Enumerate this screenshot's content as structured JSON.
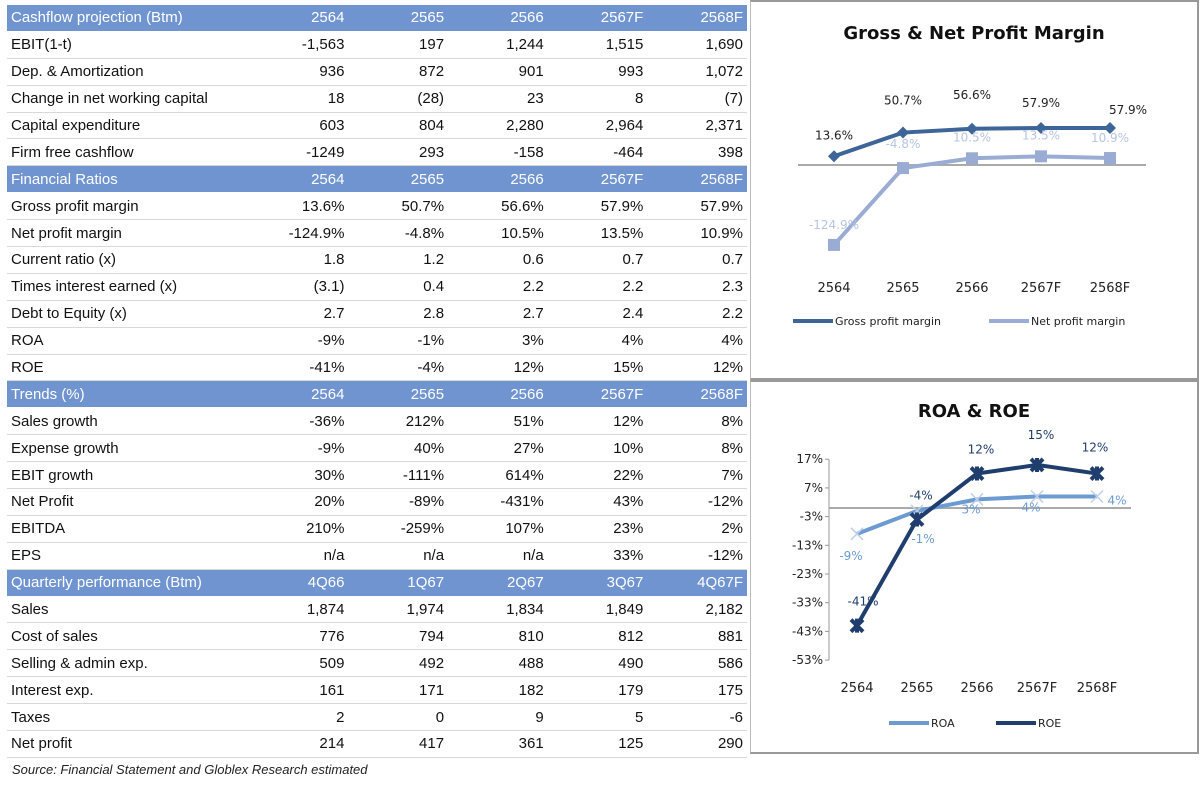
{
  "sections": [
    {
      "header": [
        "Cashflow projection (Btm)",
        "2564",
        "2565",
        "2566",
        "2567F",
        "2568F"
      ],
      "rows": [
        [
          "EBIT(1-t)",
          "-1,563",
          "197",
          "1,244",
          "1,515",
          "1,690"
        ],
        [
          "Dep. & Amortization",
          "936",
          "872",
          "901",
          "993",
          "1,072"
        ],
        [
          "Change in net working capital",
          "18",
          "(28)",
          "23",
          "8",
          "(7)"
        ],
        [
          "Capital expenditure",
          "603",
          "804",
          "2,280",
          "2,964",
          "2,371"
        ],
        [
          "Firm free cashflow",
          "-1249",
          "293",
          "-158",
          "-464",
          "398"
        ]
      ]
    },
    {
      "header": [
        "Financial Ratios",
        "2564",
        "2565",
        "2566",
        "2567F",
        "2568F"
      ],
      "rows": [
        [
          "Gross profit margin",
          "13.6%",
          "50.7%",
          "56.6%",
          "57.9%",
          "57.9%"
        ],
        [
          "Net profit margin",
          "-124.9%",
          "-4.8%",
          "10.5%",
          "13.5%",
          "10.9%"
        ],
        [
          "Current ratio (x)",
          "1.8",
          "1.2",
          "0.6",
          "0.7",
          "0.7"
        ],
        [
          "Times interest earned (x)",
          "(3.1)",
          "0.4",
          "2.2",
          "2.2",
          "2.3"
        ],
        [
          "Debt to Equity (x)",
          "2.7",
          "2.8",
          "2.7",
          "2.4",
          "2.2"
        ],
        [
          "ROA",
          "-9%",
          "-1%",
          "3%",
          "4%",
          "4%"
        ],
        [
          "ROE",
          "-41%",
          "-4%",
          "12%",
          "15%",
          "12%"
        ]
      ]
    },
    {
      "header": [
        "Trends (%)",
        "2564",
        "2565",
        "2566",
        "2567F",
        "2568F"
      ],
      "rows": [
        [
          "Sales growth",
          "-36%",
          "212%",
          "51%",
          "12%",
          "8%"
        ],
        [
          "Expense growth",
          "-9%",
          "40%",
          "27%",
          "10%",
          "8%"
        ],
        [
          "EBIT growth",
          "30%",
          "-111%",
          "614%",
          "22%",
          "7%"
        ],
        [
          "Net Profit",
          "20%",
          "-89%",
          "-431%",
          "43%",
          "-12%"
        ],
        [
          "EBITDA",
          "210%",
          "-259%",
          "107%",
          "23%",
          "2%"
        ],
        [
          "EPS",
          "n/a",
          "n/a",
          "n/a",
          "33%",
          "-12%"
        ]
      ]
    },
    {
      "header": [
        "Quarterly performance (Btm)",
        "4Q66",
        "1Q67",
        "2Q67",
        "3Q67",
        "4Q67F"
      ],
      "rows": [
        [
          "Sales",
          "1,874",
          "1,974",
          "1,834",
          "1,849",
          "2,182"
        ],
        [
          "Cost of sales",
          "776",
          "794",
          "810",
          "812",
          "881"
        ],
        [
          "Selling & admin exp.",
          "509",
          "492",
          "488",
          "490",
          "586"
        ],
        [
          "Interest exp.",
          "161",
          "171",
          "182",
          "179",
          "175"
        ],
        [
          "Taxes",
          "2",
          "0",
          "9",
          "5",
          "-6"
        ],
        [
          "Net profit",
          "214",
          "417",
          "361",
          "125",
          "290"
        ]
      ]
    }
  ],
  "source": "Source: Financial Statement and Globlex Research estimated",
  "chart_data": [
    {
      "type": "line",
      "title": "Gross & Net Profit Margin",
      "categories": [
        "2564",
        "2565",
        "2566",
        "2567F",
        "2568F"
      ],
      "series": [
        {
          "name": "Gross profit margin",
          "values": [
            13.6,
            50.7,
            56.6,
            57.9,
            57.9
          ],
          "labels": [
            "13.6%",
            "50.7%",
            "56.6%",
            "57.9%",
            "57.9%"
          ],
          "color": "#3d6597",
          "marker": "diamond"
        },
        {
          "name": "Net profit margin",
          "values": [
            -124.9,
            -4.8,
            10.5,
            13.5,
            10.9
          ],
          "labels": [
            "-124.9%",
            "-4.8%",
            "10.5%",
            "13.5%",
            "10.9%"
          ],
          "color": "#9aacd3",
          "marker": "square"
        }
      ],
      "legend": "bottom",
      "grid": false
    },
    {
      "type": "line",
      "title": "ROA & ROE",
      "categories": [
        "2564",
        "2565",
        "2566",
        "2567F",
        "2568F"
      ],
      "yticks": [
        "17%",
        "7%",
        "-3%",
        "-13%",
        "-23%",
        "-33%",
        "-43%",
        "-53%"
      ],
      "ylim": [
        -53,
        17
      ],
      "series": [
        {
          "name": "ROA",
          "values": [
            -9,
            -1,
            3,
            4,
            4
          ],
          "labels": [
            "-9%",
            "-1%",
            "3%",
            "4%",
            "4%"
          ],
          "color": "#6c9bd2",
          "marker": "x"
        },
        {
          "name": "ROE",
          "values": [
            -41,
            -4,
            12,
            15,
            12
          ],
          "labels": [
            "-41%",
            "-4%",
            "12%",
            "15%",
            "12%"
          ],
          "color": "#1f3e6e",
          "marker": "star"
        }
      ],
      "legend": "bottom",
      "grid": false
    }
  ]
}
